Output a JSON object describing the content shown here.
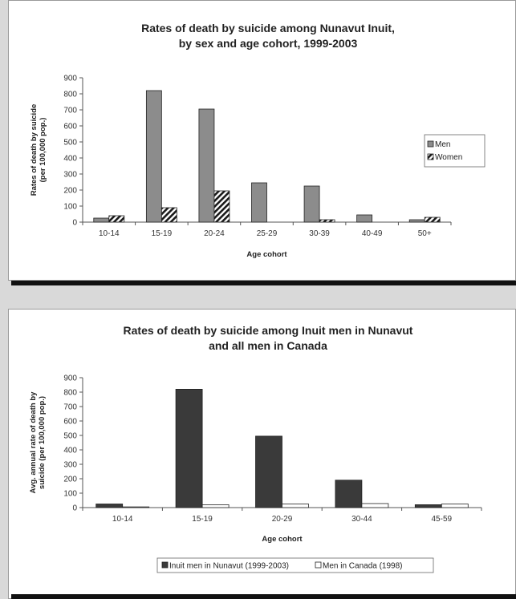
{
  "chart_data": [
    {
      "type": "bar",
      "title_lines": [
        "Rates of death by suicide among Nunavut Inuit,",
        "by sex and age cohort, 1999-2003"
      ],
      "xlabel": "Age cohort",
      "ylabel_lines": [
        "Rates of death by suicide",
        "(per 100,000 pop.)"
      ],
      "ylim": [
        0,
        900
      ],
      "yticks": [
        "0",
        "100",
        "200",
        "300",
        "400",
        "500",
        "600",
        "700",
        "800",
        "900"
      ],
      "categories": [
        "10-14",
        "15-19",
        "20-24",
        "25-29",
        "30-39",
        "40-49",
        "50+"
      ],
      "series": [
        {
          "name": "Men",
          "values": [
            25,
            820,
            705,
            245,
            225,
            45,
            15
          ],
          "color": "#8c8c8c",
          "pattern": "solid"
        },
        {
          "name": "Women",
          "values": [
            40,
            90,
            195,
            0,
            15,
            0,
            30
          ],
          "color": "#1a1a1a",
          "pattern": "diagonal-hatch"
        }
      ],
      "legend": "right",
      "grid": false
    },
    {
      "type": "bar",
      "title_lines": [
        "Rates of death by suicide among Inuit men in Nunavut",
        "and all men in Canada"
      ],
      "xlabel": "Age cohort",
      "ylabel_lines": [
        "Avg. annual rate of death by",
        "suicide (per 100,000 pop.)"
      ],
      "ylim": [
        0,
        900
      ],
      "yticks": [
        "0",
        "100",
        "200",
        "300",
        "400",
        "500",
        "600",
        "700",
        "800",
        "900"
      ],
      "categories": [
        "10-14",
        "15-19",
        "20-29",
        "30-44",
        "45-59"
      ],
      "series": [
        {
          "name": "Inuit men in Nunavut (1999-2003)",
          "values": [
            25,
            820,
            495,
            190,
            20
          ],
          "color": "#3a3a3a",
          "pattern": "solid"
        },
        {
          "name": "Men in Canada (1998)",
          "values": [
            5,
            20,
            25,
            28,
            25
          ],
          "color": "#ffffff",
          "pattern": "outline"
        }
      ],
      "legend": "bottom",
      "grid": false
    }
  ]
}
